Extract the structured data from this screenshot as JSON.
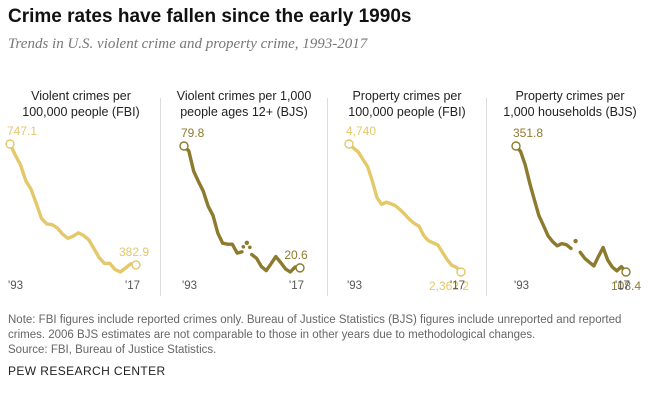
{
  "title": "Crime rates have fallen since the early 1990s",
  "subtitle": "Trends in U.S. violent crime and property crime, 1993-2017",
  "footer": {
    "note": "Note: FBI figures include reported crimes only. Bureau of Justice Statistics (BJS) figures include unreported and reported crimes. 2006 BJS estimates are not comparable to those in other years due to methodological changes.",
    "source": "Source: FBI, Bureau of Justice Statistics.",
    "brand": "PEW RESEARCH CENTER"
  },
  "colors": {
    "fbi": "#E4C86A",
    "bjs": "#8C7A2E",
    "divider": "#dcdcdc",
    "tick": "#555555"
  },
  "chart_data": [
    {
      "type": "line",
      "title": "Violent crimes per 100,000 people (FBI)",
      "x": [
        1993,
        1994,
        1995,
        1996,
        1997,
        1998,
        1999,
        2000,
        2001,
        2002,
        2003,
        2004,
        2005,
        2006,
        2007,
        2008,
        2009,
        2010,
        2011,
        2012,
        2013,
        2014,
        2015,
        2016,
        2017
      ],
      "series": [
        {
          "values": [
            747.1,
            713.6,
            684.5,
            636.6,
            611.0,
            567.6,
            523.0,
            506.5,
            504.5,
            494.4,
            475.8,
            463.2,
            469.0,
            479.3,
            471.8,
            458.6,
            431.9,
            404.5,
            387.1,
            387.8,
            369.1,
            361.6,
            373.7,
            386.3,
            382.9
          ],
          "color": "#E4C86A"
        }
      ],
      "start_label": "747.1",
      "end_label": "382.9",
      "xticks": [
        "'93",
        "'17"
      ],
      "ylim": [
        0,
        800
      ]
    },
    {
      "type": "line",
      "title": "Violent crimes per 1,000 people ages 12+ (BJS)",
      "x": [
        1993,
        1994,
        1995,
        1996,
        1997,
        1998,
        1999,
        2000,
        2001,
        2002,
        2003,
        2004,
        2005,
        2006,
        2007,
        2008,
        2009,
        2010,
        2011,
        2012,
        2013,
        2014,
        2015,
        2016,
        2017
      ],
      "series": [
        {
          "values": [
            79.8,
            77.4,
            67.5,
            62.5,
            57.8,
            50.5,
            46.1,
            37.5,
            32.6,
            32.1,
            32.1,
            27.8,
            28.4,
            32.8,
            27.1,
            25.3,
            21.3,
            19.3,
            22.6,
            26.1,
            23.2,
            20.1,
            18.6,
            21.1,
            20.6
          ],
          "color": "#8C7A2E"
        }
      ],
      "discontinuity_year": 2006,
      "start_label": "79.8",
      "end_label": "20.6",
      "xticks": [
        "'93",
        "'17"
      ],
      "ylim": [
        0,
        90
      ]
    },
    {
      "type": "line",
      "title": "Property crimes per 100,000 people (FBI)",
      "x": [
        1993,
        1994,
        1995,
        1996,
        1997,
        1998,
        1999,
        2000,
        2001,
        2002,
        2003,
        2004,
        2005,
        2006,
        2007,
        2008,
        2009,
        2010,
        2011,
        2012,
        2013,
        2014,
        2015,
        2016,
        2017
      ],
      "series": [
        {
          "values": [
            4740,
            4660,
            4591,
            4451,
            4316,
            4052,
            3743,
            3618,
            3658,
            3631,
            3591,
            3515,
            3431,
            3335,
            3263,
            3213,
            3041,
            2946,
            2905,
            2868,
            2733,
            2596,
            2487,
            2451,
            2362.2
          ],
          "color": "#E4C86A"
        }
      ],
      "start_label": "4,740",
      "end_label": "2,362.2",
      "xticks": [
        "'93",
        "'17"
      ],
      "ylim": [
        0,
        5000
      ]
    },
    {
      "type": "line",
      "title": "Property crimes per 1,000 households (BJS)",
      "x": [
        1993,
        1994,
        1995,
        1996,
        1997,
        1998,
        1999,
        2000,
        2001,
        2002,
        2003,
        2004,
        2005,
        2006,
        2007,
        2008,
        2009,
        2010,
        2011,
        2012,
        2013,
        2014,
        2015,
        2016,
        2017
      ],
      "series": [
        {
          "values": [
            351.8,
            341.2,
            315.5,
            279.5,
            248.3,
            217.4,
            198.0,
            178.1,
            166.9,
            159.0,
            163.2,
            161.1,
            154.0,
            168.2,
            146.5,
            134.7,
            127.4,
            120.2,
            138.7,
            155.8,
            131.4,
            118.1,
            110.7,
            118.6,
            108.4
          ],
          "color": "#8C7A2E"
        }
      ],
      "discontinuity_year": 2006,
      "start_label": "351.8",
      "end_label": "108.4",
      "xticks": [
        "'93",
        "'17"
      ],
      "ylim": [
        0,
        400
      ]
    }
  ]
}
